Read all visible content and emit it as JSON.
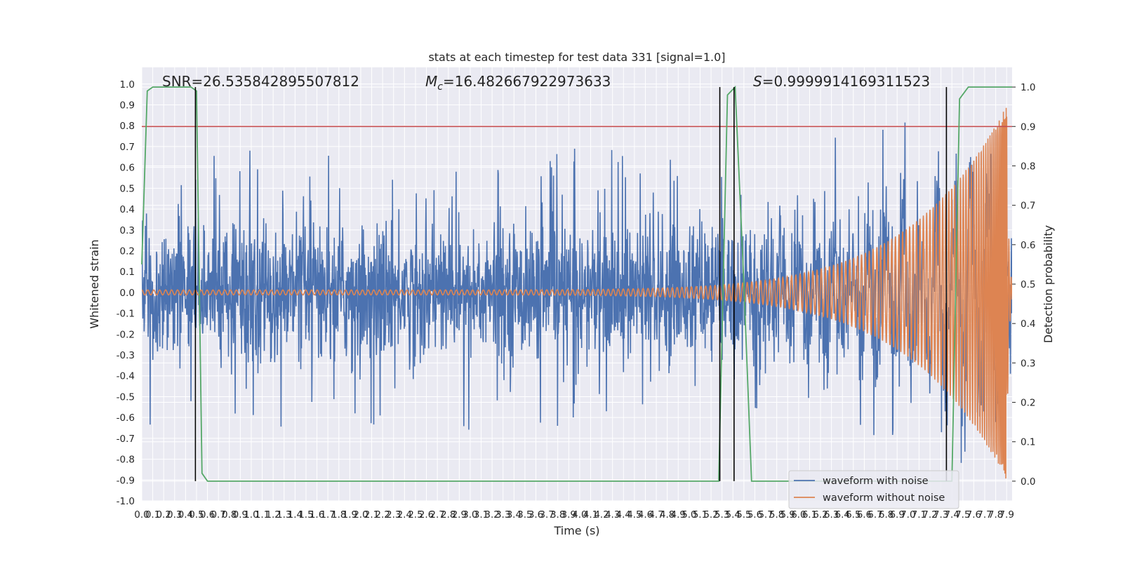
{
  "chart_data": {
    "type": "line",
    "title": "stats at each timestep for test data 331 [signal=1.0]",
    "xlabel": "Time (s)",
    "ylabel": "Whitened strain",
    "y2label": "Detection probability",
    "xlim": [
      0.0,
      7.95
    ],
    "ylim": [
      -1.0,
      1.08
    ],
    "y2lim": [
      -0.05,
      1.05
    ],
    "x_ticks": [
      "0.0",
      "0.1",
      "0.2",
      "0.3",
      "0.4",
      "0.5",
      "0.6",
      "0.7",
      "0.8",
      "0.9",
      "1.0",
      "1.1",
      "1.2",
      "1.3",
      "1.4",
      "1.5",
      "1.6",
      "1.7",
      "1.8",
      "1.9",
      "2.0",
      "2.1",
      "2.2",
      "2.3",
      "2.4",
      "2.5",
      "2.6",
      "2.7",
      "2.8",
      "2.9",
      "3.0",
      "3.1",
      "3.2",
      "3.3",
      "3.4",
      "3.5",
      "3.6",
      "3.7",
      "3.8",
      "3.9",
      "4.0",
      "4.1",
      "4.2",
      "4.3",
      "4.4",
      "4.5",
      "4.6",
      "4.7",
      "4.8",
      "4.9",
      "5.0",
      "5.1",
      "5.2",
      "5.3",
      "5.4",
      "5.5",
      "5.6",
      "5.7",
      "5.8",
      "5.9",
      "6.0",
      "6.1",
      "6.2",
      "6.3",
      "6.4",
      "6.5",
      "6.6",
      "6.7",
      "6.8",
      "6.9",
      "7.0",
      "7.1",
      "7.2",
      "7.3",
      "7.4",
      "7.5",
      "7.6",
      "7.7",
      "7.8",
      "7.9"
    ],
    "y_ticks": [
      "-1.0",
      "-0.9",
      "-0.8",
      "-0.7",
      "-0.6",
      "-0.5",
      "-0.4",
      "-0.3",
      "-0.2",
      "-0.1",
      "0.0",
      "0.1",
      "0.2",
      "0.3",
      "0.4",
      "0.5",
      "0.6",
      "0.7",
      "0.8",
      "0.9",
      "1.0"
    ],
    "y2_ticks": [
      "0.0",
      "0.1",
      "0.2",
      "0.3",
      "0.4",
      "0.5",
      "0.6",
      "0.7",
      "0.8",
      "0.9",
      "1.0"
    ],
    "annotations": {
      "snr": "SNR=26.535842895507812",
      "mc_symbol": "M",
      "mc_sub": "c",
      "mc_value": "=16.482667922973633",
      "s_symbol": "S",
      "s_value": "=0.9999914169311523"
    },
    "series": [
      {
        "name": "waveform with noise",
        "color": "#4c72b0",
        "axis": "left",
        "noise_sigma": 0.16,
        "spike_max": 0.68
      },
      {
        "name": "waveform without noise",
        "color": "#dd8452",
        "axis": "left",
        "chirp_start_amp": 0.012,
        "chirp_end_amp": 0.9,
        "merger_time": 7.9
      },
      {
        "name": "",
        "color": "#55a868",
        "axis": "right",
        "points": [
          [
            0.0,
            0.55
          ],
          [
            0.05,
            0.99
          ],
          [
            0.1,
            1.0
          ],
          [
            0.45,
            1.0
          ],
          [
            0.5,
            0.99
          ],
          [
            0.55,
            0.02
          ],
          [
            0.6,
            0.0
          ],
          [
            5.27,
            0.0
          ],
          [
            5.35,
            0.98
          ],
          [
            5.42,
            1.0
          ],
          [
            5.5,
            0.5
          ],
          [
            5.57,
            0.0
          ],
          [
            7.4,
            0.0
          ],
          [
            7.47,
            0.97
          ],
          [
            7.55,
            1.0
          ],
          [
            7.95,
            1.0
          ]
        ]
      }
    ],
    "threshold": {
      "value": 0.9,
      "axis": "right",
      "color": "#c44e52"
    },
    "vlines": {
      "x": [
        0.49,
        5.28,
        5.41,
        7.35
      ],
      "y_range": [
        0.0,
        1.0
      ],
      "color": "#000000"
    },
    "legend": {
      "placement": "lower-right"
    },
    "grid": true
  }
}
